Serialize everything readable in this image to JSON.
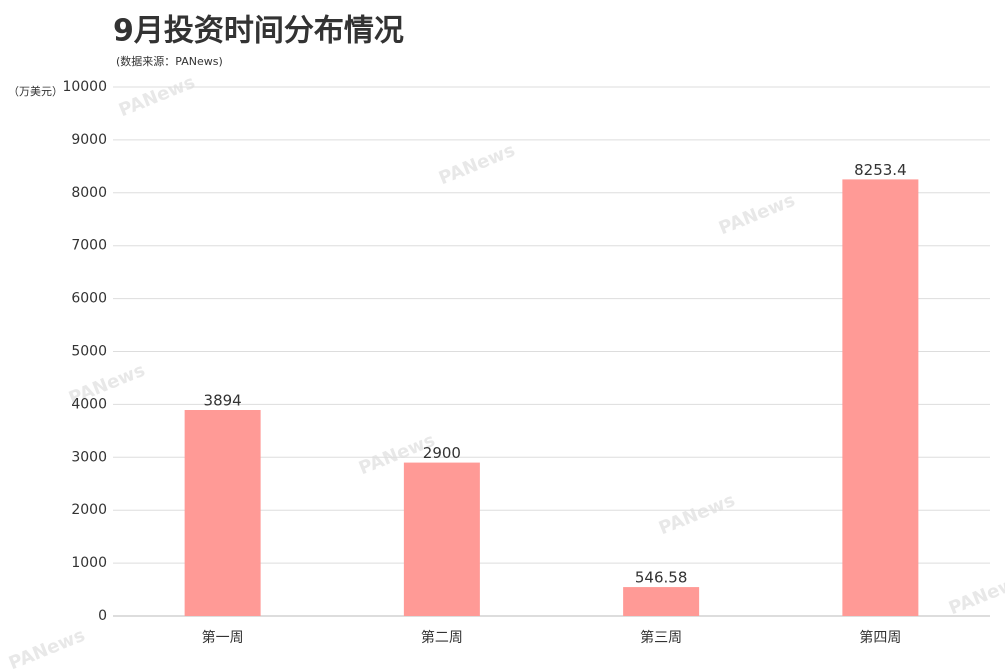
{
  "chart_data": {
    "type": "bar",
    "title": "9月投资时间分布情况",
    "subtitle": "(数据来源：PANews)",
    "y_label": "（万美元）",
    "watermark": "PANews",
    "categories": [
      "第一周",
      "第二周",
      "第三周",
      "第四周"
    ],
    "values": [
      3894,
      2900,
      546.58,
      8253.4
    ],
    "color": "#ff9a96",
    "ylim": [
      0,
      10000
    ],
    "yticks": [
      0,
      1000,
      2000,
      3000,
      4000,
      5000,
      6000,
      7000,
      8000,
      9000,
      10000
    ],
    "grid": true
  }
}
